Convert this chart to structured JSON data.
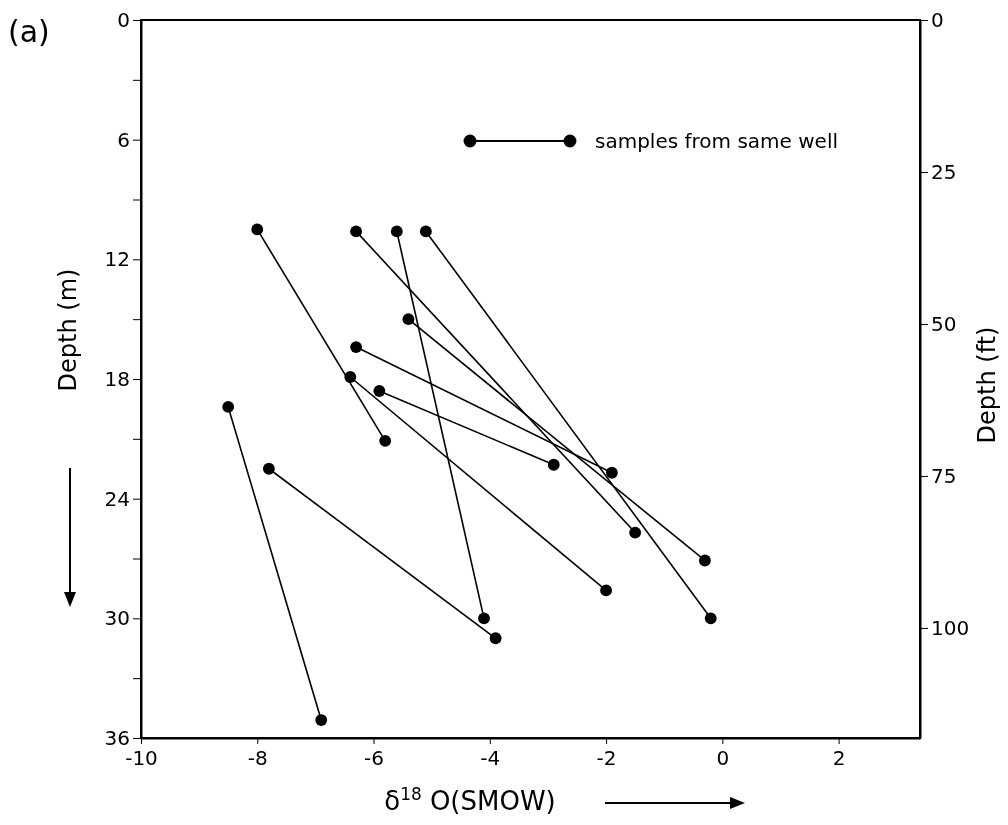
{
  "chart_data": {
    "type": "line",
    "title": "(a)",
    "xlabel": "δ$^{18}$ O(SMOW)",
    "ylabel": "Depth (m)",
    "y2label": "Depth (ft)",
    "xlim": [
      -10,
      3.4
    ],
    "xticks": [
      -10,
      -8,
      -6,
      -4,
      -2,
      0,
      2
    ],
    "ylim": [
      36,
      0
    ],
    "yticks": [
      0,
      {
        "value": 3,
        "label": null
      },
      6,
      {
        "value": 9,
        "label": null
      },
      12,
      {
        "value": 15,
        "label": null
      },
      18,
      {
        "value": 21,
        "label": null
      },
      24,
      {
        "value": 27,
        "label": null
      },
      30,
      {
        "value": 33,
        "label": null
      },
      36
    ],
    "y2lim": [
      118.11,
      0
    ],
    "y2ticks": [
      0,
      25,
      50,
      75,
      100
    ],
    "marker": "circle",
    "line_style": "solid",
    "grid": false,
    "legend": "top right",
    "series": [
      {
        "name": "samples from same well",
        "color": "#000000",
        "x": [
          -8.0,
          -5.8
        ],
        "values": [
          10.5,
          21.1
        ]
      },
      {
        "color": "#000000",
        "x": [
          -6.3,
          -1.5
        ],
        "values": [
          10.6,
          25.7
        ]
      },
      {
        "color": "#000000",
        "x": [
          -5.6,
          -4.1
        ],
        "values": [
          10.6,
          30.0
        ]
      },
      {
        "color": "#000000",
        "x": [
          -5.1,
          -0.2
        ],
        "values": [
          10.6,
          30.0
        ]
      },
      {
        "color": "#000000",
        "x": [
          -5.4,
          -0.3
        ],
        "values": [
          15.0,
          27.1
        ]
      },
      {
        "color": "#000000",
        "x": [
          -6.3,
          -1.9
        ],
        "values": [
          16.4,
          22.7
        ]
      },
      {
        "color": "#000000",
        "x": [
          -6.4,
          -2.0
        ],
        "values": [
          17.9,
          28.6
        ]
      },
      {
        "color": "#000000",
        "x": [
          -5.9,
          -2.9
        ],
        "values": [
          18.6,
          22.3
        ]
      },
      {
        "color": "#000000",
        "x": [
          -8.5,
          -6.9
        ],
        "values": [
          19.4,
          35.1
        ]
      },
      {
        "color": "#000000",
        "x": [
          -7.8,
          -3.9
        ],
        "values": [
          22.5,
          31.0
        ]
      }
    ]
  }
}
